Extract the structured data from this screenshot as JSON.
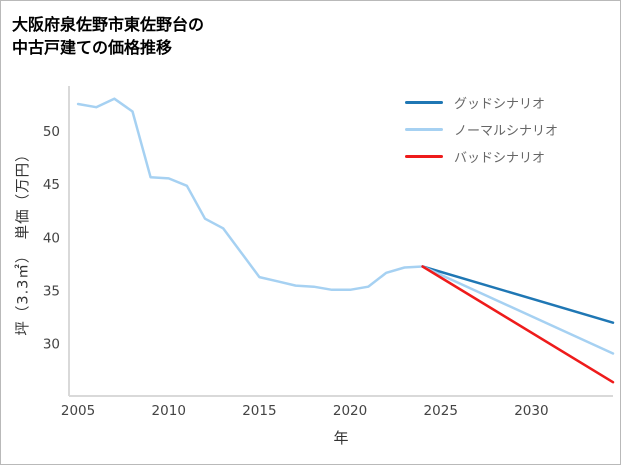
{
  "chart_data": {
    "type": "line",
    "title": "大阪府泉佐野市東佐野台の中古戸建ての価格推移",
    "title_lines": [
      "大阪府泉佐野市東佐野台の",
      "中古戸建ての価格推移"
    ],
    "xlabel": "年",
    "ylabel": "坪（3.3㎡）　単価（万円）",
    "xlim": [
      2004.5,
      2034.5
    ],
    "ylim": [
      25.1,
      54.3
    ],
    "xticks": [
      2005,
      2010,
      2015,
      2020,
      2025,
      2030
    ],
    "yticks": [
      30,
      35,
      40,
      45,
      50
    ],
    "grid": false,
    "legend_position": "top-right",
    "series": [
      {
        "key": "history",
        "color": "#a6d1f2",
        "x": [
          2005,
          2006,
          2007,
          2008,
          2009,
          2010,
          2011,
          2012,
          2013,
          2014,
          2015,
          2016,
          2017,
          2018,
          2019,
          2020,
          2021,
          2022,
          2023,
          2024
        ],
        "y": [
          52.6,
          52.3,
          53.1,
          51.9,
          45.7,
          45.6,
          44.9,
          41.8,
          40.9,
          38.6,
          36.3,
          35.9,
          35.5,
          35.4,
          35.1,
          35.1,
          35.4,
          36.7,
          37.2,
          37.3
        ]
      },
      {
        "key": "good",
        "name": "グッドシナリオ",
        "color": "#1f77b4",
        "x": [
          2024,
          2034.5
        ],
        "y": [
          37.3,
          32.0
        ]
      },
      {
        "key": "normal",
        "name": "ノーマルシナリオ",
        "color": "#a6d1f2",
        "x": [
          2024,
          2034.5
        ],
        "y": [
          37.3,
          29.1
        ]
      },
      {
        "key": "bad",
        "name": "バッドシナリオ",
        "color": "#ee1b1b",
        "x": [
          2024,
          2034.5
        ],
        "y": [
          37.3,
          26.4
        ]
      }
    ],
    "legend": [
      {
        "key": "good",
        "label": "グッドシナリオ",
        "color": "#1f77b4"
      },
      {
        "key": "normal",
        "label": "ノーマルシナリオ",
        "color": "#a6d1f2"
      },
      {
        "key": "bad",
        "label": "バッドシナリオ",
        "color": "#ee1b1b"
      }
    ]
  }
}
